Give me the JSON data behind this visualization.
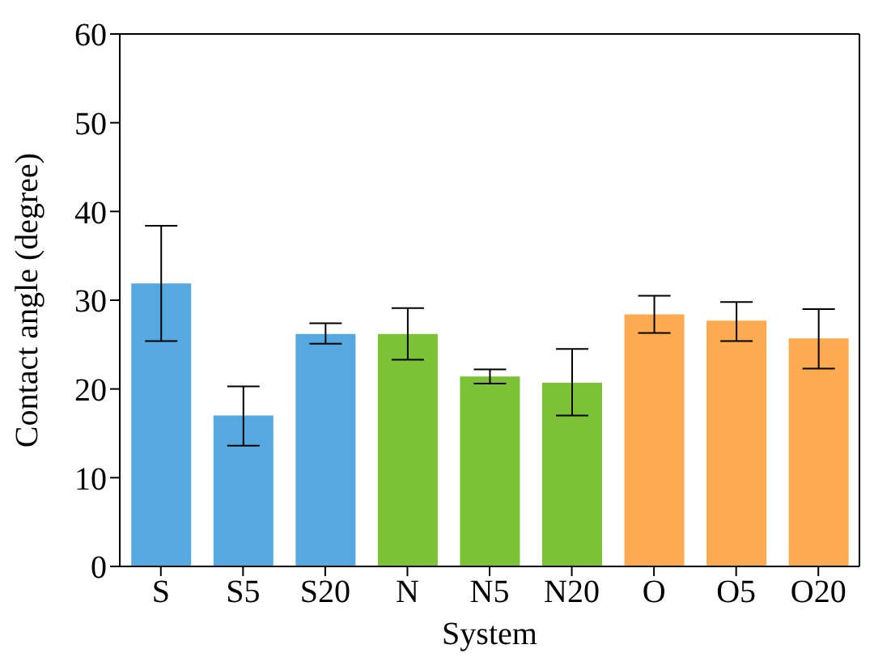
{
  "chart_data": {
    "type": "bar",
    "xlabel": "System",
    "ylabel": "Contact angle (degree)",
    "categories": [
      "S",
      "S5",
      "S20",
      "N",
      "N5",
      "N20",
      "O",
      "O5",
      "O20"
    ],
    "values": [
      31.9,
      17.0,
      26.2,
      26.2,
      21.4,
      20.7,
      28.4,
      27.7,
      25.7
    ],
    "errors": [
      [
        25.4,
        38.4
      ],
      [
        13.6,
        20.3
      ],
      [
        25.1,
        27.4
      ],
      [
        23.3,
        29.1
      ],
      [
        20.6,
        22.2
      ],
      [
        17.0,
        24.5
      ],
      [
        26.3,
        30.5
      ],
      [
        25.4,
        29.8
      ],
      [
        22.3,
        29.0
      ]
    ],
    "colors": [
      "#56a8e0",
      "#56a8e0",
      "#56a8e0",
      "#7bc236",
      "#7bc236",
      "#7bc236",
      "#fdaa50",
      "#fdaa50",
      "#fdaa50"
    ],
    "ylim": [
      0,
      60
    ],
    "yticks": [
      0,
      10,
      20,
      30,
      40,
      50,
      60
    ],
    "grid": false,
    "legend": false
  }
}
